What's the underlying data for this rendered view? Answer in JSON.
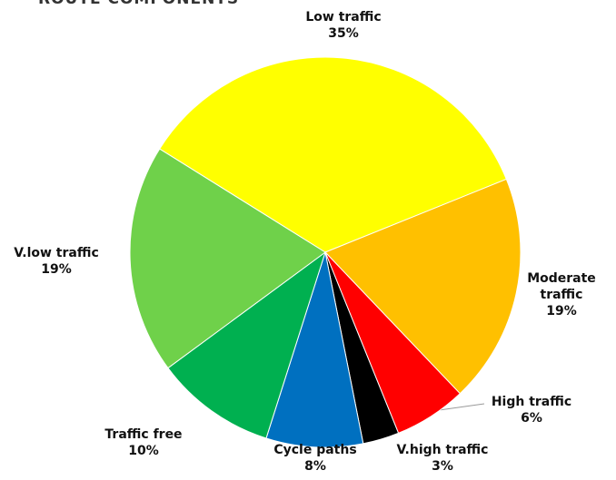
{
  "chart_data": {
    "type": "pie",
    "title": "ROUTE COMPONENTS",
    "categories": [
      "Low traffic",
      "Moderate traffic",
      "High traffic",
      "V.high traffic",
      "Cycle paths",
      "Traffic free",
      "V.low traffic"
    ],
    "values": [
      35,
      19,
      6,
      3,
      8,
      10,
      19
    ],
    "value_labels": [
      "35%",
      "19%",
      "6%",
      "3%",
      "8%",
      "10%",
      "19%"
    ],
    "colors": [
      "#ffff00",
      "#ffc000",
      "#ff0000",
      "#000000",
      "#0070c0",
      "#00b050",
      "#6fd14a"
    ]
  }
}
